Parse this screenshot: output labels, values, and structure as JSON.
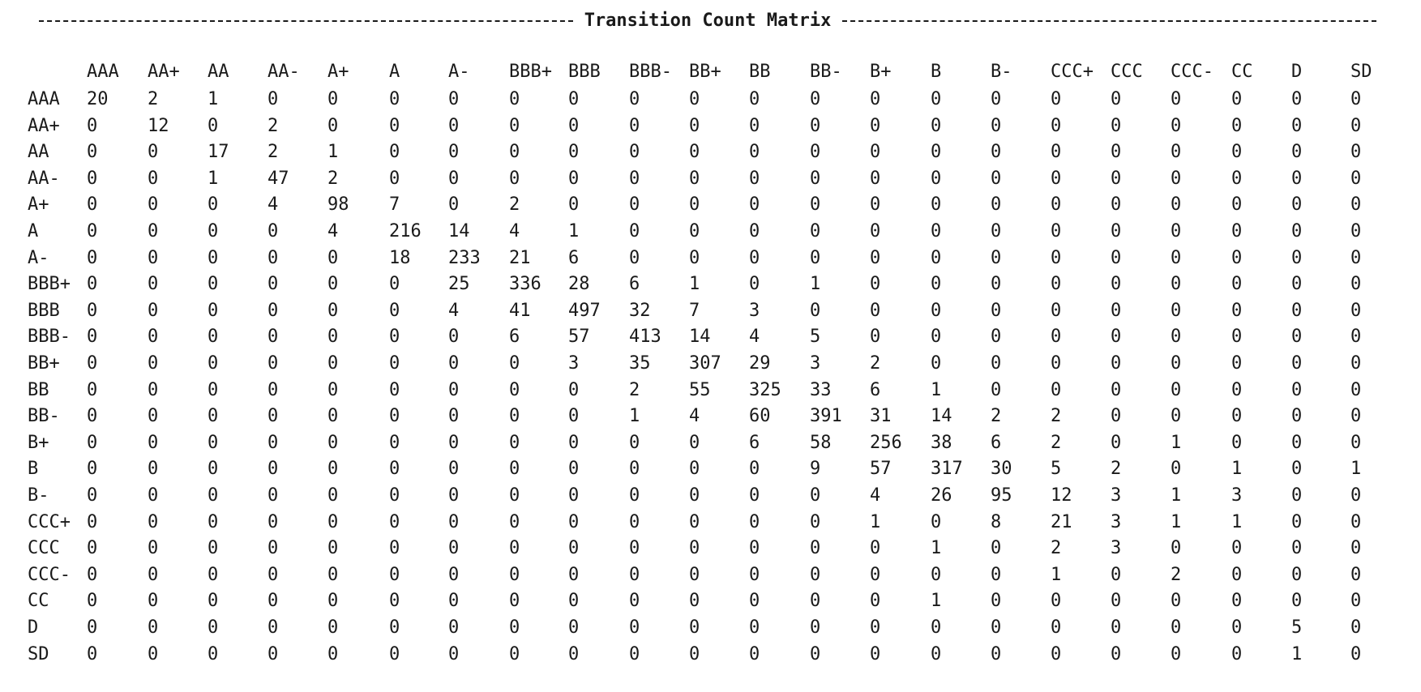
{
  "title": "Transition Count Matrix",
  "columns": [
    "AAA",
    "AA+",
    "AA",
    "AA-",
    "A+",
    "A",
    "A-",
    "BBB+",
    "BBB",
    "BBB-",
    "BB+",
    "BB",
    "BB-",
    "B+",
    "B",
    "B-",
    "CCC+",
    "CCC",
    "CCC-",
    "CC",
    "D",
    "SD"
  ],
  "rows": [
    {
      "label": "AAA",
      "values": [
        20,
        2,
        1,
        0,
        0,
        0,
        0,
        0,
        0,
        0,
        0,
        0,
        0,
        0,
        0,
        0,
        0,
        0,
        0,
        0,
        0,
        0
      ]
    },
    {
      "label": "AA+",
      "values": [
        0,
        12,
        0,
        2,
        0,
        0,
        0,
        0,
        0,
        0,
        0,
        0,
        0,
        0,
        0,
        0,
        0,
        0,
        0,
        0,
        0,
        0
      ]
    },
    {
      "label": "AA",
      "values": [
        0,
        0,
        17,
        2,
        1,
        0,
        0,
        0,
        0,
        0,
        0,
        0,
        0,
        0,
        0,
        0,
        0,
        0,
        0,
        0,
        0,
        0
      ]
    },
    {
      "label": "AA-",
      "values": [
        0,
        0,
        1,
        47,
        2,
        0,
        0,
        0,
        0,
        0,
        0,
        0,
        0,
        0,
        0,
        0,
        0,
        0,
        0,
        0,
        0,
        0
      ]
    },
    {
      "label": "A+",
      "values": [
        0,
        0,
        0,
        4,
        98,
        7,
        0,
        2,
        0,
        0,
        0,
        0,
        0,
        0,
        0,
        0,
        0,
        0,
        0,
        0,
        0,
        0
      ]
    },
    {
      "label": "A",
      "values": [
        0,
        0,
        0,
        0,
        4,
        216,
        14,
        4,
        1,
        0,
        0,
        0,
        0,
        0,
        0,
        0,
        0,
        0,
        0,
        0,
        0,
        0
      ]
    },
    {
      "label": "A-",
      "values": [
        0,
        0,
        0,
        0,
        0,
        18,
        233,
        21,
        6,
        0,
        0,
        0,
        0,
        0,
        0,
        0,
        0,
        0,
        0,
        0,
        0,
        0
      ]
    },
    {
      "label": "BBB+",
      "values": [
        0,
        0,
        0,
        0,
        0,
        0,
        25,
        336,
        28,
        6,
        1,
        0,
        1,
        0,
        0,
        0,
        0,
        0,
        0,
        0,
        0,
        0
      ]
    },
    {
      "label": "BBB",
      "values": [
        0,
        0,
        0,
        0,
        0,
        0,
        4,
        41,
        497,
        32,
        7,
        3,
        0,
        0,
        0,
        0,
        0,
        0,
        0,
        0,
        0,
        0
      ]
    },
    {
      "label": "BBB-",
      "values": [
        0,
        0,
        0,
        0,
        0,
        0,
        0,
        6,
        57,
        413,
        14,
        4,
        5,
        0,
        0,
        0,
        0,
        0,
        0,
        0,
        0,
        0
      ]
    },
    {
      "label": "BB+",
      "values": [
        0,
        0,
        0,
        0,
        0,
        0,
        0,
        0,
        3,
        35,
        307,
        29,
        3,
        2,
        0,
        0,
        0,
        0,
        0,
        0,
        0,
        0
      ]
    },
    {
      "label": "BB",
      "values": [
        0,
        0,
        0,
        0,
        0,
        0,
        0,
        0,
        0,
        2,
        55,
        325,
        33,
        6,
        1,
        0,
        0,
        0,
        0,
        0,
        0,
        0
      ]
    },
    {
      "label": "BB-",
      "values": [
        0,
        0,
        0,
        0,
        0,
        0,
        0,
        0,
        0,
        1,
        4,
        60,
        391,
        31,
        14,
        2,
        2,
        0,
        0,
        0,
        0,
        0
      ]
    },
    {
      "label": "B+",
      "values": [
        0,
        0,
        0,
        0,
        0,
        0,
        0,
        0,
        0,
        0,
        0,
        6,
        58,
        256,
        38,
        6,
        2,
        0,
        1,
        0,
        0,
        0
      ]
    },
    {
      "label": "B",
      "values": [
        0,
        0,
        0,
        0,
        0,
        0,
        0,
        0,
        0,
        0,
        0,
        0,
        9,
        57,
        317,
        30,
        5,
        2,
        0,
        1,
        0,
        1
      ]
    },
    {
      "label": "B-",
      "values": [
        0,
        0,
        0,
        0,
        0,
        0,
        0,
        0,
        0,
        0,
        0,
        0,
        0,
        4,
        26,
        95,
        12,
        3,
        1,
        3,
        0,
        0
      ]
    },
    {
      "label": "CCC+",
      "values": [
        0,
        0,
        0,
        0,
        0,
        0,
        0,
        0,
        0,
        0,
        0,
        0,
        0,
        1,
        0,
        8,
        21,
        3,
        1,
        1,
        0,
        0
      ]
    },
    {
      "label": "CCC",
      "values": [
        0,
        0,
        0,
        0,
        0,
        0,
        0,
        0,
        0,
        0,
        0,
        0,
        0,
        0,
        1,
        0,
        2,
        3,
        0,
        0,
        0,
        0
      ]
    },
    {
      "label": "CCC-",
      "values": [
        0,
        0,
        0,
        0,
        0,
        0,
        0,
        0,
        0,
        0,
        0,
        0,
        0,
        0,
        0,
        0,
        1,
        0,
        2,
        0,
        0,
        0
      ]
    },
    {
      "label": "CC",
      "values": [
        0,
        0,
        0,
        0,
        0,
        0,
        0,
        0,
        0,
        0,
        0,
        0,
        0,
        0,
        1,
        0,
        0,
        0,
        0,
        0,
        0,
        0
      ]
    },
    {
      "label": "D",
      "values": [
        0,
        0,
        0,
        0,
        0,
        0,
        0,
        0,
        0,
        0,
        0,
        0,
        0,
        0,
        0,
        0,
        0,
        0,
        0,
        0,
        5,
        0
      ]
    },
    {
      "label": "SD",
      "values": [
        0,
        0,
        0,
        0,
        0,
        0,
        0,
        0,
        0,
        0,
        0,
        0,
        0,
        0,
        0,
        0,
        0,
        0,
        0,
        0,
        1,
        0
      ]
    }
  ]
}
